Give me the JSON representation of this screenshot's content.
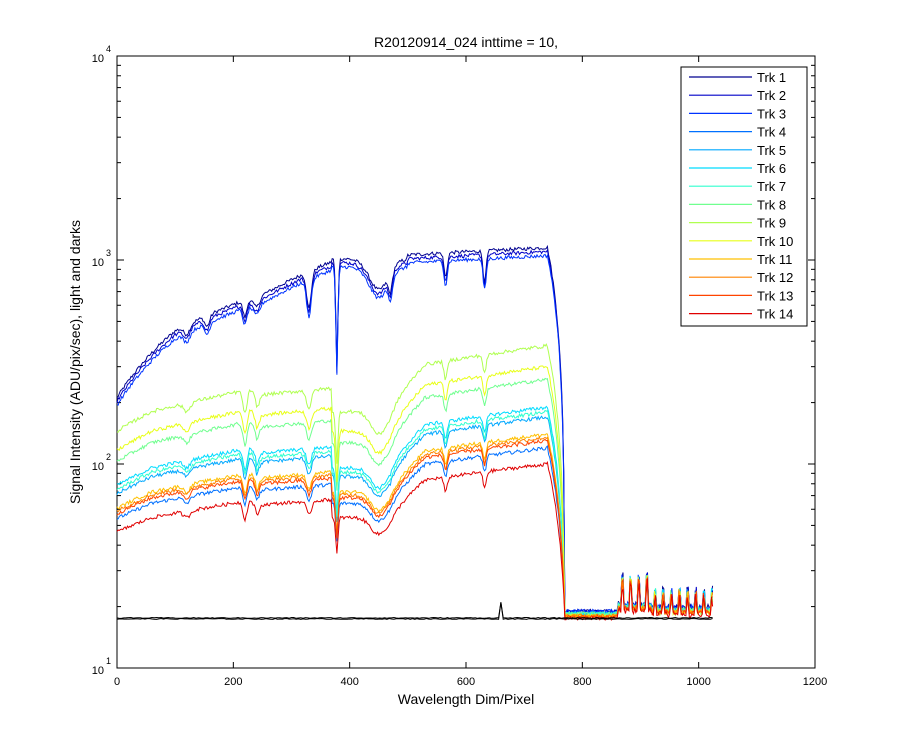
{
  "chart_data": {
    "type": "line",
    "title": "R20120914_024 inttime = 10,",
    "xlabel": "Wavelength Dim/Pixel",
    "ylabel": "Signal Intensity (ADU/pix/sec), light and darks",
    "xlim": [
      0,
      1200
    ],
    "ylim": [
      10,
      10000
    ],
    "yscale": "log",
    "x_ticks": [
      0,
      200,
      400,
      600,
      800,
      1000,
      1200
    ],
    "x_tick_labels": [
      "0",
      "200",
      "400",
      "600",
      "800",
      "1000",
      "1200"
    ],
    "y_tick_labels": [
      {
        "value": 10,
        "base": "10",
        "exp": "1"
      },
      {
        "value": 100,
        "base": "10",
        "exp": "2"
      },
      {
        "value": 1000,
        "base": "10",
        "exp": "3"
      },
      {
        "value": 10000,
        "base": "10",
        "exp": "4"
      }
    ],
    "legend_position": "top-right",
    "series": [
      {
        "name": "Trk 1",
        "color": "#00008f",
        "peak": 1150,
        "base": 19
      },
      {
        "name": "Trk 2",
        "color": "#0000c8",
        "peak": 1100,
        "base": 19
      },
      {
        "name": "Trk 3",
        "color": "#0033ff",
        "peak": 1050,
        "base": 19
      },
      {
        "name": "Trk 4",
        "color": "#0070ff",
        "peak": 120,
        "base": 18.5
      },
      {
        "name": "Trk 5",
        "color": "#00a8ff",
        "peak": 170,
        "base": 18.5
      },
      {
        "name": "Trk 6",
        "color": "#00dcff",
        "peak": 190,
        "base": 18.5
      },
      {
        "name": "Trk 7",
        "color": "#30ffcf",
        "peak": 180,
        "base": 18.5
      },
      {
        "name": "Trk 8",
        "color": "#70ff8f",
        "peak": 260,
        "base": 18.5
      },
      {
        "name": "Trk 9",
        "color": "#b0ff50",
        "peak": 380,
        "base": 18
      },
      {
        "name": "Trk 10",
        "color": "#e8ff18",
        "peak": 300,
        "base": 18
      },
      {
        "name": "Trk 11",
        "color": "#ffc000",
        "peak": 140,
        "base": 18
      },
      {
        "name": "Trk 12",
        "color": "#ff8400",
        "peak": 135,
        "base": 18
      },
      {
        "name": "Trk 13",
        "color": "#ff4400",
        "peak": 130,
        "base": 17.8
      },
      {
        "name": "Trk 14",
        "color": "#e00000",
        "peak": 100,
        "base": 17.5
      }
    ]
  }
}
